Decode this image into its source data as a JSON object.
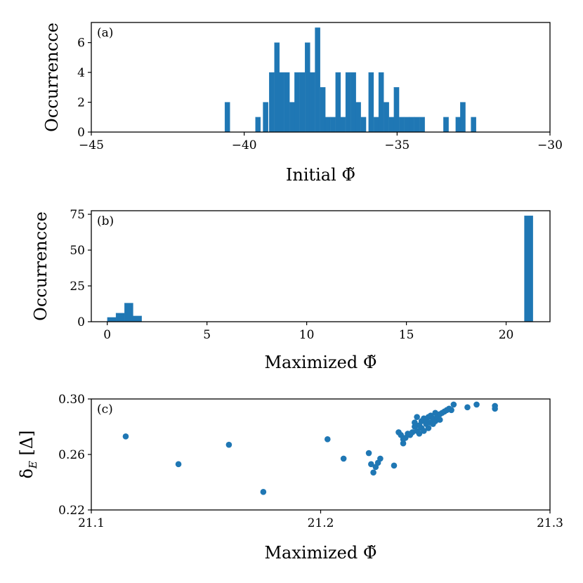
{
  "colors": {
    "bar": "#1f77b4",
    "point": "#1f77b4"
  },
  "chart_data": [
    {
      "type": "bar",
      "panel_label": "(a)",
      "xlabel": "Initial Φ̃",
      "ylabel": "Occurrencce",
      "xlim": [
        -45,
        -30
      ],
      "ylim": [
        0,
        7.35
      ],
      "xticks": [
        -45,
        -40,
        -35,
        -30
      ],
      "xtick_labels": [
        "−45",
        "−40",
        "−35",
        "−30"
      ],
      "yticks": [
        0,
        2,
        4,
        6
      ],
      "ytick_labels": [
        "0",
        "2",
        "4",
        "6"
      ],
      "bin_width": 0.167,
      "bins": [
        {
          "x": -40.55,
          "v": 2
        },
        {
          "x": -39.55,
          "v": 1
        },
        {
          "x": -39.3,
          "v": 2
        },
        {
          "x": -39.1,
          "v": 4
        },
        {
          "x": -38.93,
          "v": 6
        },
        {
          "x": -38.77,
          "v": 4
        },
        {
          "x": -38.6,
          "v": 4
        },
        {
          "x": -38.43,
          "v": 2
        },
        {
          "x": -38.27,
          "v": 4
        },
        {
          "x": -38.1,
          "v": 4
        },
        {
          "x": -37.93,
          "v": 6
        },
        {
          "x": -37.77,
          "v": 4
        },
        {
          "x": -37.6,
          "v": 7
        },
        {
          "x": -37.43,
          "v": 3
        },
        {
          "x": -37.27,
          "v": 1
        },
        {
          "x": -37.1,
          "v": 1
        },
        {
          "x": -36.93,
          "v": 4
        },
        {
          "x": -36.77,
          "v": 1
        },
        {
          "x": -36.6,
          "v": 4
        },
        {
          "x": -36.43,
          "v": 4
        },
        {
          "x": -36.27,
          "v": 2
        },
        {
          "x": -36.1,
          "v": 1
        },
        {
          "x": -35.85,
          "v": 4
        },
        {
          "x": -35.68,
          "v": 1
        },
        {
          "x": -35.52,
          "v": 4
        },
        {
          "x": -35.35,
          "v": 2
        },
        {
          "x": -35.18,
          "v": 1
        },
        {
          "x": -35.02,
          "v": 3
        },
        {
          "x": -34.85,
          "v": 1
        },
        {
          "x": -34.68,
          "v": 1
        },
        {
          "x": -34.52,
          "v": 1
        },
        {
          "x": -34.35,
          "v": 1
        },
        {
          "x": -34.18,
          "v": 1
        },
        {
          "x": -33.4,
          "v": 1
        },
        {
          "x": -33.0,
          "v": 1
        },
        {
          "x": -32.85,
          "v": 2
        },
        {
          "x": -32.5,
          "v": 1
        }
      ]
    },
    {
      "type": "bar",
      "panel_label": "(b)",
      "xlabel": "Maximized Φ̃",
      "ylabel": "Occurrencce",
      "xlim": [
        -0.8,
        22.2
      ],
      "ylim": [
        0,
        77.5
      ],
      "xticks": [
        0,
        5,
        10,
        15,
        20
      ],
      "xtick_labels": [
        "0",
        "5",
        "10",
        "15",
        "20"
      ],
      "yticks": [
        0,
        25,
        50,
        75
      ],
      "ytick_labels": [
        "0",
        "25",
        "50",
        "75"
      ],
      "bin_width": 0.43,
      "bins": [
        {
          "x": 0.22,
          "v": 3
        },
        {
          "x": 0.65,
          "v": 6
        },
        {
          "x": 1.08,
          "v": 13
        },
        {
          "x": 1.51,
          "v": 4
        },
        {
          "x": 21.13,
          "v": 74
        }
      ]
    },
    {
      "type": "scatter",
      "panel_label": "(c)",
      "xlabel": "Maximized Φ̃",
      "ylabel": "δ_E [Δ]",
      "xlim": [
        21.1,
        21.3
      ],
      "ylim": [
        0.22,
        0.3
      ],
      "xticks": [
        21.1,
        21.2,
        21.3
      ],
      "xtick_labels": [
        "21.1",
        "21.2",
        "21.3"
      ],
      "yticks": [
        0.22,
        0.26,
        0.3
      ],
      "ytick_labels": [
        "0.22",
        "0.26",
        "0.30"
      ],
      "points": [
        [
          21.115,
          0.273
        ],
        [
          21.138,
          0.253
        ],
        [
          21.16,
          0.267
        ],
        [
          21.175,
          0.233
        ],
        [
          21.203,
          0.271
        ],
        [
          21.21,
          0.257
        ],
        [
          21.221,
          0.261
        ],
        [
          21.222,
          0.253
        ],
        [
          21.223,
          0.247
        ],
        [
          21.224,
          0.251
        ],
        [
          21.225,
          0.254
        ],
        [
          21.226,
          0.257
        ],
        [
          21.232,
          0.252
        ],
        [
          21.234,
          0.276
        ],
        [
          21.235,
          0.274
        ],
        [
          21.236,
          0.271
        ],
        [
          21.236,
          0.268
        ],
        [
          21.237,
          0.272
        ],
        [
          21.238,
          0.275
        ],
        [
          21.239,
          0.274
        ],
        [
          21.24,
          0.276
        ],
        [
          21.241,
          0.28
        ],
        [
          21.241,
          0.283
        ],
        [
          21.242,
          0.287
        ],
        [
          21.242,
          0.277
        ],
        [
          21.243,
          0.275
        ],
        [
          21.243,
          0.281
        ],
        [
          21.244,
          0.279
        ],
        [
          21.244,
          0.284
        ],
        [
          21.245,
          0.286
        ],
        [
          21.245,
          0.277
        ],
        [
          21.246,
          0.285
        ],
        [
          21.246,
          0.282
        ],
        [
          21.247,
          0.287
        ],
        [
          21.247,
          0.279
        ],
        [
          21.248,
          0.283
        ],
        [
          21.248,
          0.288
        ],
        [
          21.249,
          0.286
        ],
        [
          21.249,
          0.282
        ],
        [
          21.25,
          0.29
        ],
        [
          21.25,
          0.284
        ],
        [
          21.251,
          0.287
        ],
        [
          21.252,
          0.289
        ],
        [
          21.252,
          0.285
        ],
        [
          21.253,
          0.29
        ],
        [
          21.254,
          0.291
        ],
        [
          21.255,
          0.292
        ],
        [
          21.256,
          0.293
        ],
        [
          21.257,
          0.292
        ],
        [
          21.258,
          0.296
        ],
        [
          21.264,
          0.294
        ],
        [
          21.268,
          0.296
        ],
        [
          21.276,
          0.295
        ],
        [
          21.276,
          0.293
        ]
      ]
    }
  ]
}
